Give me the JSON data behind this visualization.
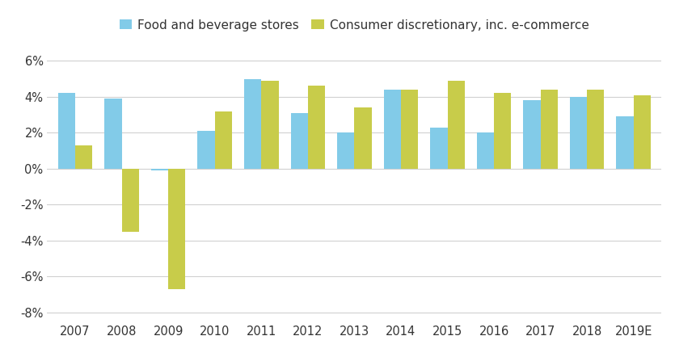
{
  "categories": [
    "2007",
    "2008",
    "2009",
    "2010",
    "2011",
    "2012",
    "2013",
    "2014",
    "2015",
    "2016",
    "2017",
    "2018",
    "2019E"
  ],
  "food_beverage": [
    4.2,
    3.9,
    -0.1,
    2.1,
    5.0,
    3.1,
    2.0,
    4.4,
    2.3,
    2.0,
    3.8,
    4.0,
    2.9
  ],
  "consumer_disc": [
    1.3,
    -3.5,
    -6.7,
    3.2,
    4.9,
    4.6,
    3.4,
    4.4,
    4.9,
    4.2,
    4.4,
    4.4,
    4.1
  ],
  "food_color": "#82cbe8",
  "disc_color": "#c8cc4a",
  "legend_food": "Food and beverage stores",
  "legend_disc": "Consumer discretionary, inc. e-commerce",
  "ylim": [
    -8.5,
    7.0
  ],
  "yticks": [
    -8,
    -6,
    -4,
    -2,
    0,
    2,
    4,
    6
  ],
  "grid_color": "#d0d0d0",
  "background_color": "#ffffff",
  "bar_width": 0.37
}
